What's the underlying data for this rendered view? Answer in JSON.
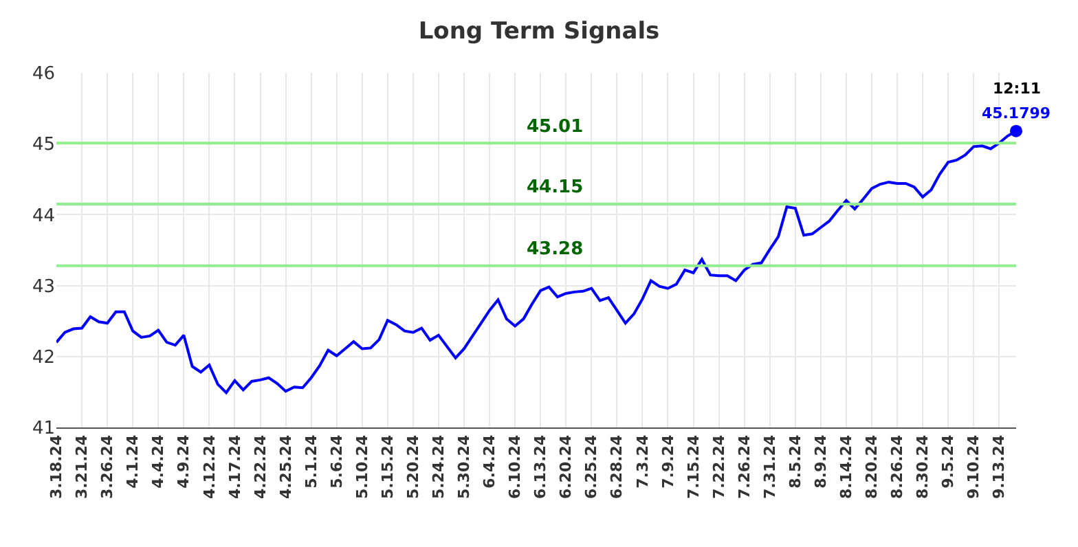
{
  "chart_data": {
    "type": "line",
    "title": "Long Term Signals",
    "categories": [
      "3.18.24",
      null,
      null,
      "3.21.24",
      null,
      null,
      "3.26.24",
      null,
      null,
      "4.1.24",
      null,
      null,
      "4.4.24",
      null,
      null,
      "4.9.24",
      null,
      null,
      "4.12.24",
      null,
      null,
      "4.17.24",
      null,
      null,
      "4.22.24",
      null,
      null,
      "4.25.24",
      null,
      null,
      "5.1.24",
      null,
      null,
      "5.6.24",
      null,
      null,
      "5.10.24",
      null,
      null,
      "5.15.24",
      null,
      null,
      "5.20.24",
      null,
      null,
      "5.24.24",
      null,
      null,
      "5.30.24",
      null,
      null,
      "6.4.24",
      null,
      null,
      "6.10.24",
      null,
      null,
      "6.13.24",
      null,
      null,
      "6.20.24",
      null,
      null,
      "6.25.24",
      null,
      null,
      "6.28.24",
      null,
      null,
      "7.3.24",
      null,
      null,
      "7.9.24",
      null,
      null,
      "7.15.24",
      null,
      null,
      "7.22.24",
      null,
      null,
      "7.26.24",
      null,
      null,
      "7.31.24",
      null,
      null,
      "8.5.24",
      null,
      null,
      "8.9.24",
      null,
      null,
      "8.14.24",
      null,
      null,
      "8.20.24",
      null,
      null,
      "8.26.24",
      null,
      null,
      "8.30.24",
      null,
      null,
      "9.5.24",
      null,
      null,
      "9.10.24",
      null,
      null,
      "9.13.24",
      null,
      null
    ],
    "series": [
      {
        "color": "#0000ff",
        "values": [
          42.2,
          42.34,
          42.39,
          42.4,
          42.56,
          42.49,
          42.47,
          42.63,
          42.63,
          42.36,
          42.27,
          42.29,
          42.37,
          42.2,
          42.16,
          42.3,
          41.86,
          41.78,
          41.88,
          41.61,
          41.49,
          41.66,
          41.53,
          41.65,
          41.67,
          41.7,
          41.62,
          41.51,
          41.57,
          41.56,
          41.7,
          41.87,
          42.09,
          42.01,
          42.11,
          42.21,
          42.11,
          42.12,
          42.24,
          42.51,
          42.45,
          42.36,
          42.34,
          42.4,
          42.23,
          42.3,
          42.14,
          41.98,
          42.11,
          42.29,
          42.47,
          42.65,
          42.8,
          42.53,
          42.43,
          42.53,
          42.74,
          42.93,
          42.98,
          42.84,
          42.89,
          42.91,
          42.92,
          42.96,
          42.79,
          42.83,
          42.65,
          42.47,
          42.6,
          42.81,
          43.07,
          42.99,
          42.96,
          43.02,
          43.22,
          43.18,
          43.37,
          43.15,
          43.14,
          43.14,
          43.07,
          43.22,
          43.3,
          43.32,
          43.51,
          43.69,
          44.11,
          44.09,
          43.71,
          43.73,
          43.82,
          43.91,
          44.06,
          44.2,
          44.08,
          44.22,
          44.37,
          44.43,
          44.46,
          44.44,
          44.44,
          44.39,
          44.25,
          44.35,
          44.57,
          44.74,
          44.77,
          44.84,
          44.96,
          44.97,
          44.93,
          45.01,
          45.11,
          45.1799
        ],
        "value_labels": [
          null,
          null,
          null,
          null,
          null,
          null,
          null,
          null,
          null,
          null,
          null,
          null,
          null,
          null,
          null,
          null,
          null,
          null,
          null,
          null,
          null,
          null,
          null,
          null,
          null,
          null,
          null,
          null,
          null,
          null,
          null,
          null,
          null,
          null,
          null,
          null,
          null,
          null,
          null,
          null,
          null,
          null,
          null,
          null,
          null,
          null,
          null,
          null,
          null,
          null,
          null,
          null,
          null,
          null,
          null,
          null,
          null,
          null,
          null,
          null,
          null,
          null,
          null,
          null,
          null,
          null,
          null,
          null,
          null,
          null,
          null,
          null,
          null,
          null,
          null,
          null,
          null,
          null,
          null,
          null,
          null,
          null,
          null,
          null,
          null,
          null,
          null,
          null,
          null,
          null,
          null,
          null,
          null,
          null,
          null,
          null,
          null,
          null,
          null,
          null,
          null,
          null,
          null,
          null,
          null,
          null,
          null,
          null,
          null,
          null,
          null,
          null,
          null,
          "45.1799"
        ]
      }
    ],
    "annotations": [
      "12:11"
    ],
    "ylim": [
      41,
      46
    ],
    "yticks": [
      41,
      42,
      43,
      44,
      45,
      46
    ],
    "grid": true,
    "marker": "none",
    "line_style": "solid",
    "ref_lines": [
      {
        "axis": "y",
        "value": 45.01,
        "label": "45.01",
        "color": "#90ee90"
      },
      {
        "axis": "y",
        "value": 44.15,
        "label": "44.15",
        "color": "#90ee90"
      },
      {
        "axis": "y",
        "value": 43.28,
        "label": "43.28",
        "color": "#90ee90"
      }
    ]
  }
}
